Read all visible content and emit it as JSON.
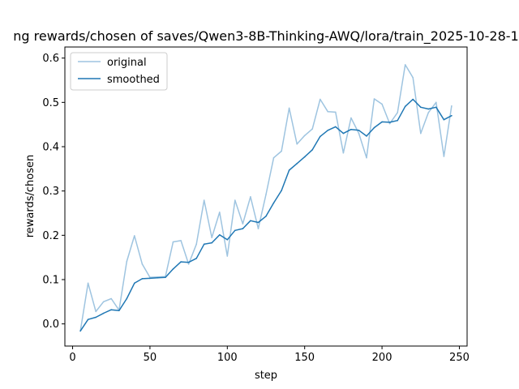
{
  "chart_data": {
    "type": "line",
    "title": "ng rewards/chosen of saves/Qwen3-8B-Thinking-AWQ/lora/train_2025-10-28-1",
    "xlabel": "step",
    "ylabel": "rewards/chosen",
    "xlim": [
      -5,
      255
    ],
    "ylim": [
      -0.05,
      0.625
    ],
    "xticks": [
      0,
      50,
      100,
      150,
      200,
      250
    ],
    "yticks": [
      0.0,
      0.1,
      0.2,
      0.3,
      0.4,
      0.5,
      0.6
    ],
    "xtick_labels": [
      "0",
      "50",
      "100",
      "150",
      "200",
      "250"
    ],
    "ytick_labels": [
      "0.0",
      "0.1",
      "0.2",
      "0.3",
      "0.4",
      "0.5",
      "0.6"
    ],
    "grid": false,
    "legend": "top-left",
    "x": [
      5,
      10,
      15,
      20,
      25,
      30,
      35,
      40,
      45,
      50,
      55,
      60,
      65,
      70,
      75,
      80,
      85,
      90,
      95,
      100,
      105,
      110,
      115,
      120,
      125,
      130,
      135,
      140,
      145,
      150,
      155,
      160,
      165,
      170,
      175,
      180,
      185,
      190,
      195,
      200,
      205,
      210,
      215,
      220,
      225,
      230,
      235,
      240,
      245
    ],
    "series": [
      {
        "name": "original",
        "color": "#9ec4e0",
        "values": [
          -0.016,
          0.092,
          0.028,
          0.05,
          0.057,
          0.031,
          0.141,
          0.199,
          0.135,
          0.105,
          0.106,
          0.107,
          0.185,
          0.188,
          0.135,
          0.18,
          0.279,
          0.195,
          0.252,
          0.153,
          0.279,
          0.226,
          0.287,
          0.215,
          0.292,
          0.375,
          0.39,
          0.487,
          0.406,
          0.425,
          0.44,
          0.507,
          0.479,
          0.478,
          0.386,
          0.465,
          0.43,
          0.375,
          0.508,
          0.496,
          0.452,
          0.477,
          0.585,
          0.556,
          0.43,
          0.477,
          0.5,
          0.378,
          0.492
        ]
      },
      {
        "name": "smoothed",
        "color": "#1f77b4",
        "values": [
          -0.016,
          0.01,
          0.015,
          0.024,
          0.032,
          0.03,
          0.057,
          0.092,
          0.102,
          0.103,
          0.104,
          0.105,
          0.124,
          0.14,
          0.139,
          0.148,
          0.18,
          0.183,
          0.201,
          0.19,
          0.211,
          0.215,
          0.233,
          0.229,
          0.243,
          0.273,
          0.301,
          0.347,
          0.362,
          0.377,
          0.393,
          0.423,
          0.437,
          0.445,
          0.43,
          0.439,
          0.437,
          0.424,
          0.443,
          0.456,
          0.455,
          0.459,
          0.491,
          0.507,
          0.489,
          0.485,
          0.489,
          0.461,
          0.47
        ]
      }
    ]
  }
}
